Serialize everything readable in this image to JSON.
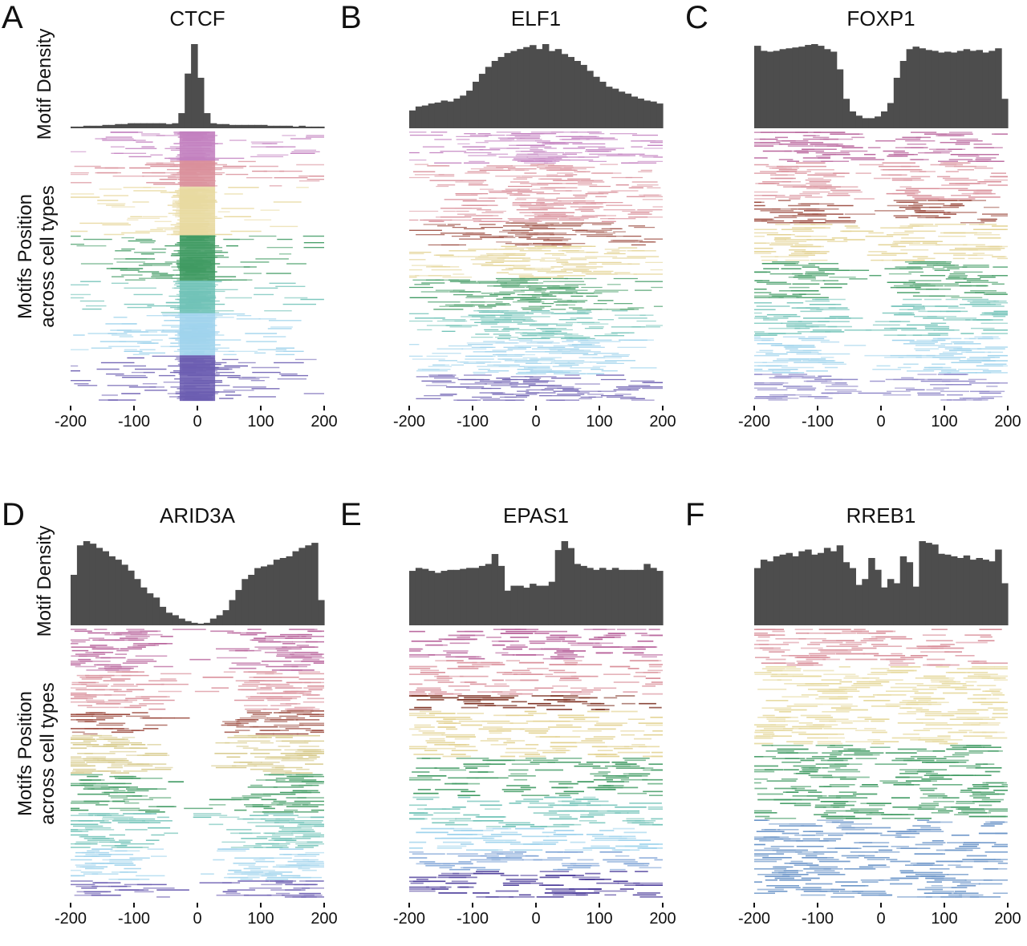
{
  "ylabels": {
    "density": "Motif Density",
    "position_line1": "Motifs Position",
    "position_line2": "across cell types"
  },
  "chart_data": [
    {
      "type": "bar",
      "panel": "A",
      "title": "CTCF",
      "x": [
        -200,
        -190,
        -180,
        -170,
        -160,
        -150,
        -140,
        -130,
        -120,
        -110,
        -100,
        -90,
        -80,
        -70,
        -60,
        -50,
        -40,
        -30,
        -20,
        -10,
        0,
        10,
        20,
        30,
        40,
        50,
        60,
        70,
        80,
        90,
        100,
        110,
        120,
        130,
        140,
        150,
        160,
        170,
        180,
        190
      ],
      "values": [
        2,
        2,
        3,
        3,
        3,
        4,
        4,
        5,
        5,
        6,
        6,
        6,
        6,
        6,
        6,
        5,
        6,
        18,
        65,
        100,
        60,
        18,
        6,
        5,
        5,
        4,
        4,
        4,
        4,
        4,
        4,
        3,
        3,
        3,
        3,
        2,
        3,
        2,
        2,
        2
      ],
      "xlim": [
        -200,
        200
      ],
      "xticks": [
        -200,
        -100,
        0,
        100,
        200
      ],
      "raster_bands": [
        {
          "color": "#c27fbf",
          "rows": 18,
          "center_enriched": true
        },
        {
          "color": "#d98f9a",
          "rows": 16,
          "center_enriched": true
        },
        {
          "color": "#e8d9a0",
          "rows": 30,
          "center_enriched": true
        },
        {
          "color": "#3f9a62",
          "rows": 28,
          "center_enriched": true
        },
        {
          "color": "#70c2b7",
          "rows": 20,
          "center_enriched": true
        },
        {
          "color": "#9fd3ec",
          "rows": 26,
          "center_enriched": true
        },
        {
          "color": "#6a5cb0",
          "rows": 28,
          "center_enriched": true
        }
      ]
    },
    {
      "type": "bar",
      "panel": "B",
      "title": "ELF1",
      "x": [
        -200,
        -190,
        -180,
        -170,
        -160,
        -150,
        -140,
        -130,
        -120,
        -110,
        -100,
        -90,
        -80,
        -70,
        -60,
        -50,
        -40,
        -30,
        -20,
        -10,
        0,
        10,
        20,
        30,
        40,
        50,
        60,
        70,
        80,
        90,
        100,
        110,
        120,
        130,
        140,
        150,
        160,
        170,
        180,
        190
      ],
      "values": [
        18,
        22,
        23,
        25,
        26,
        28,
        27,
        30,
        33,
        38,
        47,
        55,
        62,
        68,
        72,
        76,
        78,
        80,
        82,
        84,
        80,
        85,
        78,
        80,
        75,
        72,
        68,
        64,
        58,
        52,
        47,
        42,
        40,
        37,
        35,
        32,
        30,
        28,
        27,
        25
      ],
      "xlim": [
        -200,
        200
      ],
      "xticks": [
        -200,
        -100,
        0,
        100,
        200
      ],
      "raster_bands": [
        {
          "color": "#c27fbf",
          "rows": 22,
          "center_enriched": false
        },
        {
          "color": "#d98f9a",
          "rows": 40,
          "center_enriched": false
        },
        {
          "color": "#9b4a3e",
          "rows": 16,
          "center_enriched": false
        },
        {
          "color": "#e3d394",
          "rows": 22,
          "center_enriched": false
        },
        {
          "color": "#3f9a62",
          "rows": 22,
          "center_enriched": false
        },
        {
          "color": "#70c2b7",
          "rows": 20,
          "center_enriched": false
        },
        {
          "color": "#9fd3ec",
          "rows": 24,
          "center_enriched": false
        },
        {
          "color": "#6a5cb0",
          "rows": 18,
          "center_enriched": false
        }
      ]
    },
    {
      "type": "bar",
      "panel": "C",
      "title": "FOXP1",
      "x": [
        -200,
        -190,
        -180,
        -170,
        -160,
        -150,
        -140,
        -130,
        -120,
        -110,
        -100,
        -90,
        -80,
        -70,
        -60,
        -50,
        -40,
        -30,
        -20,
        -10,
        0,
        10,
        20,
        30,
        40,
        50,
        60,
        70,
        80,
        90,
        100,
        110,
        120,
        130,
        140,
        150,
        160,
        170,
        180,
        190
      ],
      "values": [
        98,
        92,
        91,
        92,
        94,
        95,
        96,
        97,
        99,
        100,
        98,
        94,
        91,
        70,
        35,
        20,
        15,
        12,
        12,
        14,
        20,
        30,
        60,
        80,
        94,
        97,
        95,
        93,
        92,
        90,
        91,
        90,
        92,
        94,
        92,
        93,
        90,
        92,
        95,
        35
      ],
      "xlim": [
        -200,
        200
      ],
      "xticks": [
        -200,
        -100,
        0,
        100,
        200
      ],
      "raster_bands": [
        {
          "color": "#b7619a",
          "rows": 18,
          "center_enriched": false
        },
        {
          "color": "#d98f9a",
          "rows": 22,
          "center_enriched": false
        },
        {
          "color": "#9b4a3e",
          "rows": 14,
          "center_enriched": false
        },
        {
          "color": "#e3d394",
          "rows": 22,
          "center_enriched": false
        },
        {
          "color": "#3f9a62",
          "rows": 22,
          "center_enriched": false
        },
        {
          "color": "#70c2b7",
          "rows": 22,
          "center_enriched": false
        },
        {
          "color": "#9fd3ec",
          "rows": 22,
          "center_enriched": false
        },
        {
          "color": "#8d85c7",
          "rows": 16,
          "center_enriched": false
        }
      ]
    },
    {
      "type": "bar",
      "panel": "D",
      "title": "ARID3A",
      "x": [
        -200,
        -190,
        -180,
        -170,
        -160,
        -150,
        -140,
        -130,
        -120,
        -110,
        -100,
        -90,
        -80,
        -70,
        -60,
        -50,
        -40,
        -30,
        -20,
        -10,
        0,
        10,
        20,
        30,
        40,
        50,
        60,
        70,
        80,
        90,
        100,
        110,
        120,
        130,
        140,
        150,
        160,
        170,
        180,
        190
      ],
      "values": [
        60,
        95,
        100,
        97,
        92,
        88,
        82,
        78,
        72,
        65,
        55,
        45,
        38,
        33,
        22,
        15,
        12,
        8,
        5,
        3,
        2,
        3,
        8,
        12,
        18,
        30,
        42,
        55,
        60,
        68,
        70,
        72,
        78,
        80,
        82,
        88,
        92,
        95,
        98,
        30
      ],
      "xlim": [
        -200,
        200
      ],
      "xticks": [
        -200,
        -100,
        0,
        100,
        200
      ],
      "raster_bands": [
        {
          "color": "#b7619a",
          "rows": 24,
          "center_enriched": false
        },
        {
          "color": "#d98f9a",
          "rows": 22,
          "center_enriched": false
        },
        {
          "color": "#9b4a3e",
          "rows": 14,
          "center_enriched": false
        },
        {
          "color": "#d6c98a",
          "rows": 22,
          "center_enriched": false
        },
        {
          "color": "#3f9a62",
          "rows": 22,
          "center_enriched": false
        },
        {
          "color": "#70c2b7",
          "rows": 20,
          "center_enriched": false
        },
        {
          "color": "#9fd3ec",
          "rows": 18,
          "center_enriched": false
        },
        {
          "color": "#6a5cb0",
          "rows": 10,
          "center_enriched": false
        }
      ]
    },
    {
      "type": "bar",
      "panel": "E",
      "title": "EPAS1",
      "x": [
        -200,
        -190,
        -180,
        -170,
        -160,
        -150,
        -140,
        -130,
        -120,
        -110,
        -100,
        -90,
        -80,
        -70,
        -60,
        -50,
        -40,
        -30,
        -20,
        -10,
        0,
        10,
        20,
        30,
        40,
        50,
        60,
        70,
        80,
        90,
        100,
        110,
        120,
        130,
        140,
        150,
        160,
        170,
        180,
        190
      ],
      "values": [
        55,
        58,
        57,
        55,
        53,
        55,
        56,
        56,
        57,
        58,
        58,
        60,
        62,
        72,
        60,
        35,
        40,
        40,
        38,
        42,
        40,
        40,
        44,
        76,
        85,
        78,
        62,
        60,
        58,
        56,
        58,
        56,
        58,
        56,
        56,
        56,
        56,
        62,
        58,
        55
      ],
      "xlim": [
        -200,
        200
      ],
      "xticks": [
        -200,
        -100,
        0,
        100,
        200
      ],
      "raster_bands": [
        {
          "color": "#b7619a",
          "rows": 16,
          "center_enriched": false
        },
        {
          "color": "#d98f9a",
          "rows": 18,
          "center_enriched": false
        },
        {
          "color": "#7c2f20",
          "rows": 8,
          "center_enriched": false
        },
        {
          "color": "#e3d394",
          "rows": 24,
          "center_enriched": false
        },
        {
          "color": "#3f9a62",
          "rows": 20,
          "center_enriched": false
        },
        {
          "color": "#70c2b7",
          "rows": 16,
          "center_enriched": false
        },
        {
          "color": "#9fd3ec",
          "rows": 12,
          "center_enriched": false
        },
        {
          "color": "#7ea3d6",
          "rows": 10,
          "center_enriched": false
        },
        {
          "color": "#4a3a99",
          "rows": 14,
          "center_enriched": false
        }
      ]
    },
    {
      "type": "bar",
      "panel": "F",
      "title": "RREB1",
      "x": [
        -200,
        -190,
        -180,
        -170,
        -160,
        -150,
        -140,
        -130,
        -120,
        -110,
        -100,
        -90,
        -80,
        -70,
        -60,
        -50,
        -40,
        -30,
        -20,
        -10,
        0,
        10,
        20,
        30,
        40,
        50,
        60,
        70,
        80,
        90,
        100,
        110,
        120,
        130,
        140,
        150,
        160,
        170,
        180,
        190
      ],
      "values": [
        68,
        78,
        76,
        82,
        84,
        86,
        82,
        88,
        90,
        84,
        86,
        92,
        88,
        95,
        75,
        68,
        48,
        55,
        80,
        66,
        45,
        55,
        50,
        82,
        75,
        46,
        100,
        98,
        96,
        85,
        84,
        82,
        80,
        83,
        78,
        80,
        78,
        76,
        90,
        50
      ],
      "xlim": [
        -200,
        200
      ],
      "xticks": [
        -200,
        -100,
        0,
        100,
        200
      ],
      "raster_bands": [
        {
          "color": "#d98f9a",
          "rows": 20,
          "center_enriched": false
        },
        {
          "color": "#e6d99e",
          "rows": 42,
          "center_enriched": false
        },
        {
          "color": "#3f9a62",
          "rows": 40,
          "center_enriched": false
        },
        {
          "color": "#6b95c8",
          "rows": 42,
          "center_enriched": false
        }
      ]
    }
  ]
}
